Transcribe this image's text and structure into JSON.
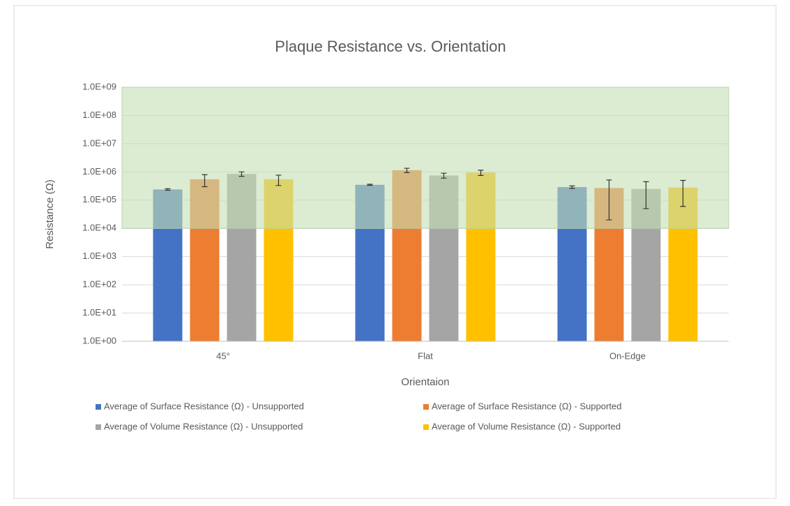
{
  "chart_data": {
    "type": "bar",
    "title": "Plaque Resistance vs. Orientation",
    "x_label": "Orientaion",
    "y_label": "Resistance (Ω)",
    "categories": [
      "45°",
      "Flat",
      "On-Edge"
    ],
    "ylog": true,
    "ylim": [
      1,
      1000000000
    ],
    "yticks": [
      {
        "value": 1,
        "label": "1.0E+00"
      },
      {
        "value": 10,
        "label": "1.0E+01"
      },
      {
        "value": 100,
        "label": "1.0E+02"
      },
      {
        "value": 1000,
        "label": "1.0E+03"
      },
      {
        "value": 10000,
        "label": "1.0E+04"
      },
      {
        "value": 100000,
        "label": "1.0E+05"
      },
      {
        "value": 1000000,
        "label": "1.0E+06"
      },
      {
        "value": 10000000,
        "label": "1.0E+07"
      },
      {
        "value": 100000000,
        "label": "1.0E+08"
      },
      {
        "value": 1000000000,
        "label": "1.0E+09"
      }
    ],
    "grid": true,
    "shaded_range": [
      10000,
      1000000000
    ],
    "shaded_color": "#c5e0b4",
    "legend": "bottom",
    "series": [
      {
        "name": "Average of Surface Resistance (Ω) - Unsupported",
        "color": "#4472c4",
        "values": [
          240000,
          350000,
          290000
        ],
        "errors": [
          15000,
          15000,
          30000
        ]
      },
      {
        "name": "Average of Surface Resistance (Ω) - Supported",
        "color": "#ed7d31",
        "values": [
          550000,
          1150000,
          270000
        ],
        "errors": [
          250000,
          200000,
          250000
        ]
      },
      {
        "name": "Average of Volume Resistance (Ω) - Unsupported",
        "color": "#a5a5a5",
        "values": [
          850000,
          750000,
          250000
        ],
        "errors": [
          150000,
          150000,
          200000
        ]
      },
      {
        "name": "Average of Volume Resistance (Ω) - Supported",
        "color": "#ffc000",
        "values": [
          550000,
          950000,
          280000
        ],
        "errors": [
          220000,
          200000,
          220000
        ]
      }
    ]
  }
}
